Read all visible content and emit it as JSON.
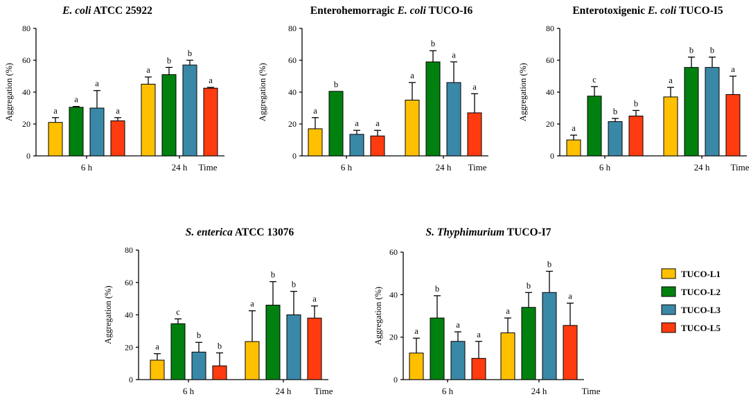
{
  "series_colors": [
    "#ffc000",
    "#00800f",
    "#3a88a8",
    "#ff3b0f"
  ],
  "legend": [
    "TUCO-L1",
    "TUCO-L2",
    "TUCO-L3",
    "TUCO-L5"
  ],
  "chart_data": [
    {
      "type": "bar",
      "title_parts": [
        {
          "text": "E. coli",
          "italic": true
        },
        {
          "text": " ATCC 25922",
          "italic": false
        }
      ],
      "ylabel": "Aggregation (%)",
      "ylim": [
        0,
        80
      ],
      "yticks": [
        0,
        20,
        40,
        60,
        80
      ],
      "categories": [
        "6 h",
        "24 h"
      ],
      "time_label": "Time",
      "series": [
        {
          "name": "TUCO-L1",
          "values": [
            21,
            45
          ],
          "errors": [
            3,
            4.5
          ],
          "letters": [
            "a",
            "a"
          ]
        },
        {
          "name": "TUCO-L2",
          "values": [
            30.5,
            51
          ],
          "errors": [
            0.5,
            4.5
          ],
          "letters": [
            "a",
            "b"
          ]
        },
        {
          "name": "TUCO-L3",
          "values": [
            30,
            57
          ],
          "errors": [
            11,
            3
          ],
          "letters": [
            "a",
            "b"
          ]
        },
        {
          "name": "TUCO-L5",
          "values": [
            22,
            42.5
          ],
          "errors": [
            2,
            0.5
          ],
          "letters": [
            "a",
            "a"
          ]
        }
      ]
    },
    {
      "type": "bar",
      "title_parts": [
        {
          "text": "Enterohemorragic ",
          "italic": false
        },
        {
          "text": "E. coli",
          "italic": true
        },
        {
          "text": " TUCO-I6",
          "italic": false
        }
      ],
      "ylabel": "Aggregation (%)",
      "ylim": [
        0,
        80
      ],
      "yticks": [
        0,
        20,
        40,
        60,
        80
      ],
      "categories": [
        "6 h",
        "24 h"
      ],
      "time_label": "Time",
      "series": [
        {
          "name": "TUCO-L1",
          "values": [
            17,
            35
          ],
          "errors": [
            7,
            11
          ],
          "letters": [
            "a",
            "a"
          ]
        },
        {
          "name": "TUCO-L2",
          "values": [
            40.5,
            59
          ],
          "errors": [
            0,
            7
          ],
          "letters": [
            "b",
            "b"
          ]
        },
        {
          "name": "TUCO-L3",
          "values": [
            13.5,
            46
          ],
          "errors": [
            2.5,
            13
          ],
          "letters": [
            "a",
            "a"
          ]
        },
        {
          "name": "TUCO-L5",
          "values": [
            12.5,
            27
          ],
          "errors": [
            3.5,
            12
          ],
          "letters": [
            "a",
            "a"
          ]
        }
      ]
    },
    {
      "type": "bar",
      "title_parts": [
        {
          "text": "Enterotoxigenic ",
          "italic": false
        },
        {
          "text": "E. coli",
          "italic": true
        },
        {
          "text": " TUCO-I5",
          "italic": false
        }
      ],
      "ylabel": "Aggregation (%)",
      "ylim": [
        0,
        80
      ],
      "yticks": [
        0,
        20,
        40,
        60,
        80
      ],
      "categories": [
        "6 h",
        "24 h"
      ],
      "time_label": "Time",
      "series": [
        {
          "name": "TUCO-L1",
          "values": [
            10,
            37
          ],
          "errors": [
            3,
            6
          ],
          "letters": [
            "a",
            "a"
          ]
        },
        {
          "name": "TUCO-L2",
          "values": [
            37.5,
            55.5
          ],
          "errors": [
            6,
            6.5
          ],
          "letters": [
            "c",
            "b"
          ]
        },
        {
          "name": "TUCO-L3",
          "values": [
            21.5,
            55.5
          ],
          "errors": [
            2,
            6.5
          ],
          "letters": [
            "b",
            "b"
          ]
        },
        {
          "name": "TUCO-L5",
          "values": [
            25,
            38.5
          ],
          "errors": [
            3.5,
            11.5
          ],
          "letters": [
            "b",
            "a"
          ]
        }
      ]
    },
    {
      "type": "bar",
      "title_parts": [
        {
          "text": "S. enterica",
          "italic": true
        },
        {
          "text": " ATCC 13076",
          "italic": false
        }
      ],
      "ylabel": "Aggregation (%)",
      "ylim": [
        0,
        80
      ],
      "yticks": [
        0,
        20,
        40,
        60,
        80
      ],
      "categories": [
        "6 h",
        "24 h"
      ],
      "time_label": "Time",
      "series": [
        {
          "name": "TUCO-L1",
          "values": [
            12,
            23.5
          ],
          "errors": [
            4,
            19
          ],
          "letters": [
            "a",
            "a"
          ]
        },
        {
          "name": "TUCO-L2",
          "values": [
            34.5,
            46
          ],
          "errors": [
            3,
            14.5
          ],
          "letters": [
            "c",
            "b"
          ]
        },
        {
          "name": "TUCO-L3",
          "values": [
            17,
            40
          ],
          "errors": [
            6,
            14.5
          ],
          "letters": [
            "b",
            "b"
          ]
        },
        {
          "name": "TUCO-L5",
          "values": [
            8.5,
            38
          ],
          "errors": [
            8,
            7.5
          ],
          "letters": [
            "b",
            "a"
          ]
        }
      ]
    },
    {
      "type": "bar",
      "title_parts": [
        {
          "text": "S. Thyphimurium",
          "italic": true
        },
        {
          "text": " TUCO-I7",
          "italic": false
        }
      ],
      "ylabel": "Aggregation (%)",
      "ylim": [
        0,
        60
      ],
      "yticks": [
        0,
        20,
        40,
        60
      ],
      "categories": [
        "6 h",
        "24 h"
      ],
      "time_label": "Time",
      "series": [
        {
          "name": "TUCO-L1",
          "values": [
            12.5,
            22
          ],
          "errors": [
            7,
            7
          ],
          "letters": [
            "a",
            "a"
          ]
        },
        {
          "name": "TUCO-L2",
          "values": [
            29,
            34
          ],
          "errors": [
            10.5,
            7
          ],
          "letters": [
            "b",
            "b"
          ]
        },
        {
          "name": "TUCO-L3",
          "values": [
            18,
            41
          ],
          "errors": [
            4.5,
            10
          ],
          "letters": [
            "a",
            "b"
          ]
        },
        {
          "name": "TUCO-L5",
          "values": [
            10,
            25.5
          ],
          "errors": [
            8,
            10.5
          ],
          "letters": [
            "a",
            "a"
          ]
        }
      ]
    }
  ]
}
